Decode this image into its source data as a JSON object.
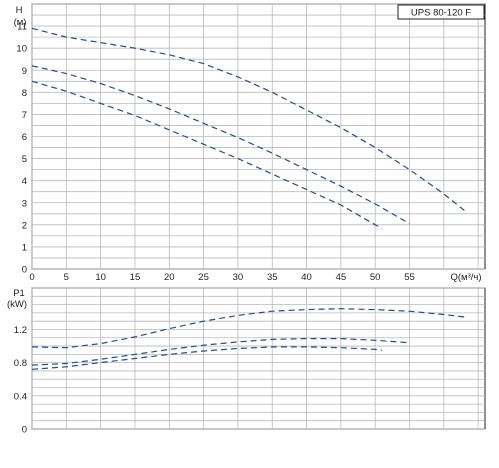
{
  "chart_data": [
    {
      "type": "line",
      "title": "UPS 80-120 F",
      "ylabel_top": "H",
      "yunit": "(м)",
      "xlabel": "Q(м³/ч)",
      "xlim": [
        0,
        66
      ],
      "ylim": [
        0,
        12
      ],
      "x_ticks": [
        "0",
        "5",
        "10",
        "15",
        "20",
        "25",
        "30",
        "35",
        "40",
        "45",
        "50",
        "55"
      ],
      "y_ticks": [
        "0",
        "1",
        "2",
        "3",
        "4",
        "5",
        "6",
        "7",
        "8",
        "9",
        "10",
        "11"
      ],
      "grid": true,
      "line_color": "#1f4f8f",
      "series": [
        {
          "x": [
            0,
            5,
            10,
            15,
            20,
            25,
            30,
            35,
            40,
            45,
            50,
            55,
            60,
            63
          ],
          "y": [
            10.9,
            10.5,
            10.25,
            10.0,
            9.7,
            9.3,
            8.7,
            8.0,
            7.2,
            6.4,
            5.5,
            4.5,
            3.4,
            2.65
          ]
        },
        {
          "x": [
            0,
            5,
            10,
            15,
            20,
            25,
            30,
            35,
            40,
            45,
            50,
            55
          ],
          "y": [
            9.2,
            8.85,
            8.4,
            7.85,
            7.25,
            6.6,
            5.95,
            5.25,
            4.5,
            3.75,
            2.95,
            2.05
          ]
        },
        {
          "x": [
            0,
            5,
            10,
            15,
            20,
            25,
            30,
            35,
            40,
            45,
            50,
            51
          ],
          "y": [
            8.5,
            8.05,
            7.5,
            6.95,
            6.3,
            5.65,
            5.0,
            4.3,
            3.6,
            2.9,
            2.0,
            1.85
          ]
        }
      ]
    },
    {
      "type": "line",
      "ylabel_top": "P1",
      "yunit": "(kW)",
      "xlim": [
        0,
        66
      ],
      "ylim": [
        0,
        1.7
      ],
      "y_ticks": [
        "0",
        "0.4",
        "0.8",
        "1.2"
      ],
      "grid": true,
      "line_color": "#1f4f8f",
      "series": [
        {
          "x": [
            0,
            5,
            10,
            15,
            20,
            25,
            30,
            35,
            40,
            45,
            50,
            55,
            60,
            63
          ],
          "y": [
            0.99,
            0.98,
            1.03,
            1.11,
            1.21,
            1.3,
            1.37,
            1.42,
            1.44,
            1.45,
            1.44,
            1.42,
            1.38,
            1.35
          ]
        },
        {
          "x": [
            0,
            5,
            10,
            15,
            20,
            25,
            30,
            35,
            40,
            45,
            50,
            55
          ],
          "y": [
            0.77,
            0.79,
            0.84,
            0.9,
            0.96,
            1.01,
            1.05,
            1.08,
            1.09,
            1.09,
            1.07,
            1.04
          ]
        },
        {
          "x": [
            0,
            5,
            10,
            15,
            20,
            25,
            30,
            35,
            40,
            45,
            50,
            51
          ],
          "y": [
            0.72,
            0.75,
            0.8,
            0.85,
            0.9,
            0.94,
            0.97,
            0.99,
            0.99,
            0.98,
            0.96,
            0.95
          ]
        }
      ]
    }
  ]
}
